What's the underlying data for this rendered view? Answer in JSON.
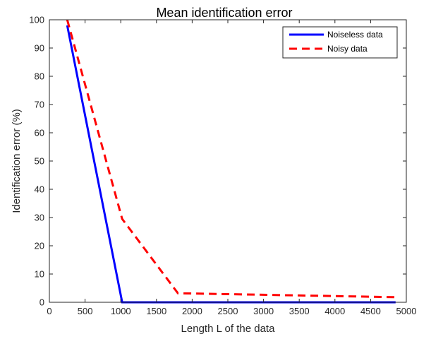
{
  "chart_data": {
    "type": "line",
    "title": "Mean identification error",
    "xlabel": "Length L of the data",
    "ylabel": "Identification error (%)",
    "xlim": [
      0,
      5000
    ],
    "ylim": [
      0,
      100
    ],
    "xticks": [
      0,
      500,
      1000,
      1500,
      2000,
      2500,
      3000,
      3500,
      4000,
      4500,
      5000
    ],
    "yticks": [
      0,
      10,
      20,
      30,
      40,
      50,
      60,
      70,
      80,
      90,
      100
    ],
    "grid": false,
    "legend_position": "top-right",
    "series": [
      {
        "name": "Noiseless data",
        "color": "#0000ff",
        "style": "solid",
        "x": [
          250,
          1020,
          4850
        ],
        "y": [
          98,
          0,
          0
        ]
      },
      {
        "name": "Noisy data",
        "color": "#ff0000",
        "style": "dashed",
        "x": [
          250,
          1020,
          1800,
          4850
        ],
        "y": [
          100,
          29.5,
          3.2,
          1.8
        ]
      }
    ]
  }
}
